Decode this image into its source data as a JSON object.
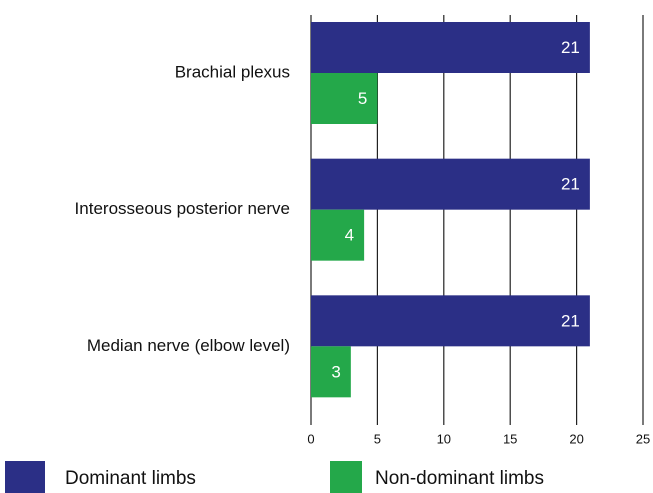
{
  "chart_data": {
    "type": "bar",
    "orientation": "horizontal",
    "categories": [
      "Brachial plexus",
      "Interosseous posterior nerve",
      "Median nerve (elbow level)"
    ],
    "series": [
      {
        "name": "Dominant limbs",
        "color": "#2b2f86",
        "values": [
          21,
          21,
          21
        ]
      },
      {
        "name": "Non-dominant limbs",
        "color": "#24a84a",
        "values": [
          5,
          4,
          3
        ]
      }
    ],
    "xlim": [
      0,
      25
    ],
    "xticks": [
      0,
      5,
      10,
      15,
      20,
      25
    ],
    "grid": true,
    "legend": "bottom"
  }
}
